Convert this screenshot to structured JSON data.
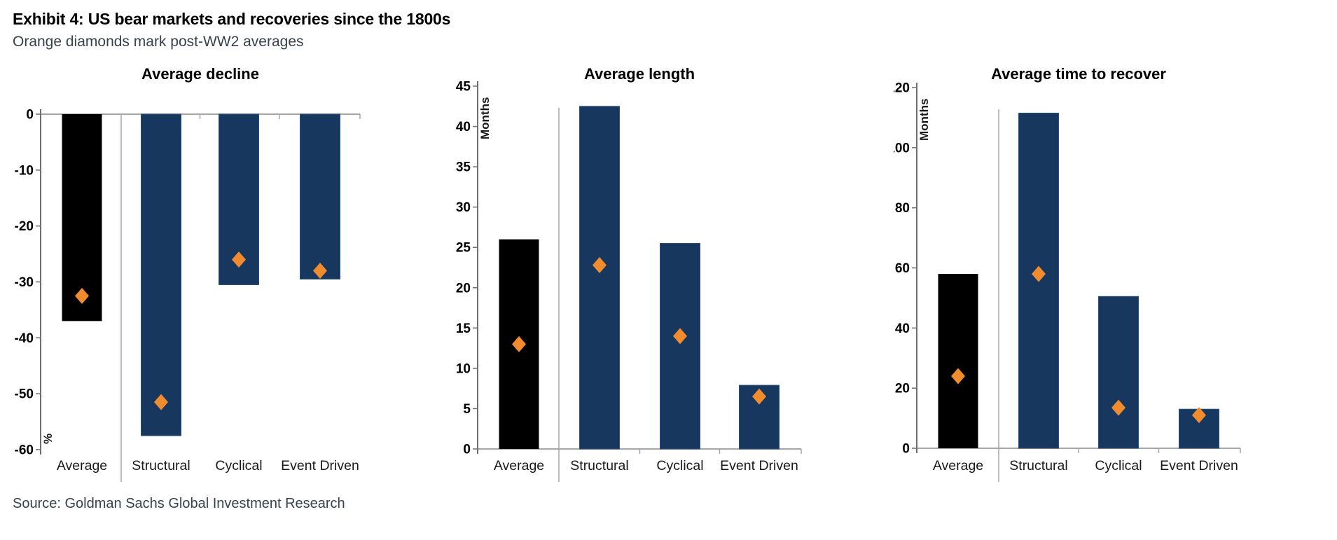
{
  "header": {
    "title": "Exhibit 4: US bear markets and recoveries since the 1800s",
    "subtitle": "Orange diamonds mark post-WW2 averages"
  },
  "source": "Source: Goldman Sachs Global Investment Research",
  "colors": {
    "bar_navy": "#17375E",
    "bar_black": "#000000",
    "bar_edge": "#24517F",
    "diamond_orange": "#F08C2E",
    "axis_line": "#6E6E6E",
    "baseline": "#A6A6A6",
    "separator": "#A6A6A6",
    "tick_label": "#000000",
    "category_label": "#1A1A1A",
    "title_color": "#000000"
  },
  "chart_data": [
    {
      "type": "bar",
      "title": "Average decline",
      "unit_label": "%",
      "ylabel": "%",
      "categories": [
        "Average",
        "Structural",
        "Cyclical",
        "Event Driven"
      ],
      "series": [
        {
          "name": "Average decline since 1800s (bar)",
          "values": [
            -37,
            -57.5,
            -30.5,
            -29.5
          ]
        },
        {
          "name": "Post-WW2 average (orange diamond)",
          "values": [
            -32.5,
            -51.5,
            -26,
            -28
          ]
        }
      ],
      "ylim": [
        -60,
        0
      ],
      "ytick_step": 10,
      "grid": false,
      "legend": "none",
      "bar_color_by_category": [
        "#000000",
        "#17375E",
        "#17375E",
        "#17375E"
      ]
    },
    {
      "type": "bar",
      "title": "Average length",
      "unit_label": "Months",
      "ylabel": "Months",
      "categories": [
        "Average",
        "Structural",
        "Cyclical",
        "Event Driven"
      ],
      "series": [
        {
          "name": "Average length since 1800s (bar)",
          "values": [
            26,
            42.5,
            25.5,
            7.9
          ]
        },
        {
          "name": "Post-WW2 average (orange diamond)",
          "values": [
            13,
            22.8,
            14,
            6.5
          ]
        }
      ],
      "ylim": [
        0,
        45
      ],
      "ytick_step": 5,
      "grid": false,
      "legend": "none",
      "bar_color_by_category": [
        "#000000",
        "#17375E",
        "#17375E",
        "#17375E"
      ]
    },
    {
      "type": "bar",
      "title": "Average time to recover",
      "unit_label": "Months",
      "ylabel": "Months",
      "categories": [
        "Average",
        "Structural",
        "Cyclical",
        "Event Driven"
      ],
      "series": [
        {
          "name": "Average time to recover since 1800s (bar)",
          "values": [
            58,
            111.5,
            50.5,
            13
          ]
        },
        {
          "name": "Post-WW2 average (orange diamond)",
          "values": [
            24,
            58,
            13.5,
            11
          ]
        }
      ],
      "ylim": [
        0,
        120
      ],
      "ytick_step": 20,
      "grid": false,
      "legend": "none",
      "bar_color_by_category": [
        "#000000",
        "#17375E",
        "#17375E",
        "#17375E"
      ]
    }
  ]
}
